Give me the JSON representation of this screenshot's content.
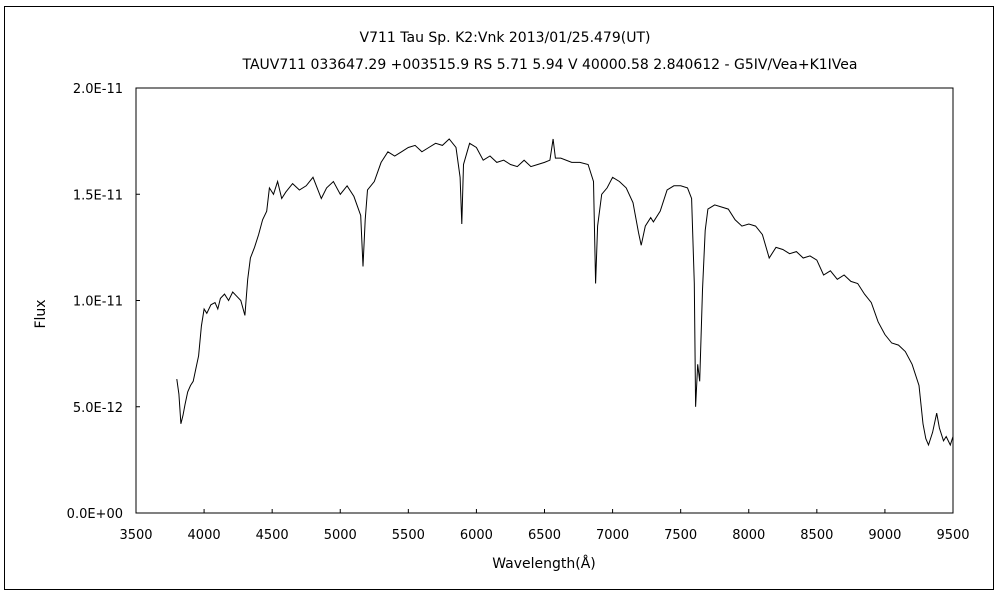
{
  "chart_data": {
    "type": "line",
    "title": "V711 Tau    Sp. K2:Vnk    2013/01/25.479(UT)",
    "subtitle": "TAUV711 033647.29 +003515.9 RS 5.71 5.94 V 40000.58 2.840612 - G5IV/Vea+K1IVea",
    "xlabel": "Wavelength(Å)",
    "ylabel": "Flux",
    "xlim": [
      3500,
      9500
    ],
    "ylim": [
      0,
      2e-11
    ],
    "xticks": [
      3500,
      4000,
      4500,
      5000,
      5500,
      6000,
      6500,
      7000,
      7500,
      8000,
      8500,
      9000,
      9500
    ],
    "xtick_labels": [
      "3500",
      "4000",
      "4500",
      "5000",
      "5500",
      "6000",
      "6500",
      "7000",
      "7500",
      "8000",
      "8500",
      "9000",
      "9500"
    ],
    "yticks": [
      0,
      5e-12,
      1e-11,
      1.5e-11,
      2e-11
    ],
    "ytick_labels": [
      "0.0E+00",
      "5.0E-12",
      "1.0E-11",
      "1.5E-11",
      "2.0E-11"
    ],
    "grid": false,
    "line_color": "#000000",
    "series": [
      {
        "x": [
          3800,
          3815,
          3830,
          3845,
          3860,
          3880,
          3900,
          3920,
          3940,
          3960,
          3980,
          4000,
          4020,
          4050,
          4080,
          4101,
          4120,
          4150,
          4180,
          4210,
          4240,
          4270,
          4300,
          4320,
          4340,
          4370,
          4400,
          4430,
          4460,
          4480,
          4510,
          4540,
          4570,
          4600,
          4650,
          4700,
          4750,
          4800,
          4861,
          4900,
          4950,
          5000,
          5050,
          5100,
          5150,
          5167,
          5183,
          5200,
          5250,
          5300,
          5350,
          5400,
          5450,
          5500,
          5550,
          5600,
          5650,
          5700,
          5750,
          5800,
          5850,
          5880,
          5893,
          5905,
          5950,
          6000,
          6050,
          6100,
          6150,
          6200,
          6250,
          6300,
          6350,
          6400,
          6450,
          6500,
          6540,
          6563,
          6580,
          6620,
          6700,
          6760,
          6820,
          6860,
          6875,
          6890,
          6920,
          6960,
          7000,
          7050,
          7100,
          7150,
          7190,
          7210,
          7240,
          7280,
          7300,
          7350,
          7400,
          7450,
          7500,
          7550,
          7580,
          7600,
          7610,
          7625,
          7640,
          7660,
          7680,
          7700,
          7750,
          7800,
          7850,
          7900,
          7950,
          8000,
          8050,
          8100,
          8150,
          8200,
          8250,
          8300,
          8350,
          8400,
          8450,
          8500,
          8550,
          8600,
          8650,
          8700,
          8750,
          8800,
          8850,
          8900,
          8950,
          9000,
          9050,
          9100,
          9150,
          9200,
          9250,
          9280,
          9300,
          9320,
          9350,
          9380,
          9400,
          9430,
          9450,
          9480,
          9500
        ],
        "y": [
          6.3e-12,
          5.6e-12,
          4.2e-12,
          4.6e-12,
          5.1e-12,
          5.7e-12,
          6e-12,
          6.2e-12,
          6.8e-12,
          7.4e-12,
          8.8e-12,
          9.6e-12,
          9.4e-12,
          9.8e-12,
          9.9e-12,
          9.6e-12,
          1.01e-11,
          1.03e-11,
          1e-11,
          1.04e-11,
          1.02e-11,
          1e-11,
          9.3e-12,
          1.1e-11,
          1.2e-11,
          1.25e-11,
          1.31e-11,
          1.38e-11,
          1.42e-11,
          1.53e-11,
          1.5e-11,
          1.56e-11,
          1.48e-11,
          1.51e-11,
          1.55e-11,
          1.52e-11,
          1.54e-11,
          1.58e-11,
          1.48e-11,
          1.53e-11,
          1.56e-11,
          1.5e-11,
          1.54e-11,
          1.49e-11,
          1.4e-11,
          1.16e-11,
          1.38e-11,
          1.52e-11,
          1.56e-11,
          1.65e-11,
          1.7e-11,
          1.68e-11,
          1.7e-11,
          1.72e-11,
          1.73e-11,
          1.7e-11,
          1.72e-11,
          1.74e-11,
          1.73e-11,
          1.76e-11,
          1.72e-11,
          1.58e-11,
          1.36e-11,
          1.64e-11,
          1.74e-11,
          1.72e-11,
          1.66e-11,
          1.68e-11,
          1.65e-11,
          1.66e-11,
          1.64e-11,
          1.63e-11,
          1.66e-11,
          1.63e-11,
          1.64e-11,
          1.65e-11,
          1.66e-11,
          1.76e-11,
          1.67e-11,
          1.67e-11,
          1.65e-11,
          1.65e-11,
          1.64e-11,
          1.56e-11,
          1.08e-11,
          1.35e-11,
          1.5e-11,
          1.53e-11,
          1.58e-11,
          1.56e-11,
          1.53e-11,
          1.46e-11,
          1.32e-11,
          1.26e-11,
          1.35e-11,
          1.39e-11,
          1.37e-11,
          1.42e-11,
          1.52e-11,
          1.54e-11,
          1.54e-11,
          1.53e-11,
          1.48e-11,
          1.08e-11,
          5e-12,
          7e-12,
          6.2e-12,
          1.05e-11,
          1.33e-11,
          1.43e-11,
          1.45e-11,
          1.44e-11,
          1.43e-11,
          1.38e-11,
          1.35e-11,
          1.36e-11,
          1.35e-11,
          1.31e-11,
          1.2e-11,
          1.25e-11,
          1.24e-11,
          1.22e-11,
          1.23e-11,
          1.2e-11,
          1.21e-11,
          1.19e-11,
          1.12e-11,
          1.14e-11,
          1.1e-11,
          1.12e-11,
          1.09e-11,
          1.08e-11,
          1.03e-11,
          9.9e-12,
          9e-12,
          8.4e-12,
          8e-12,
          7.9e-12,
          7.6e-12,
          7e-12,
          6e-12,
          4.2e-12,
          3.5e-12,
          3.2e-12,
          3.8e-12,
          4.7e-12,
          4e-12,
          3.4e-12,
          3.6e-12,
          3.2e-12,
          3.6e-12
        ]
      }
    ]
  }
}
